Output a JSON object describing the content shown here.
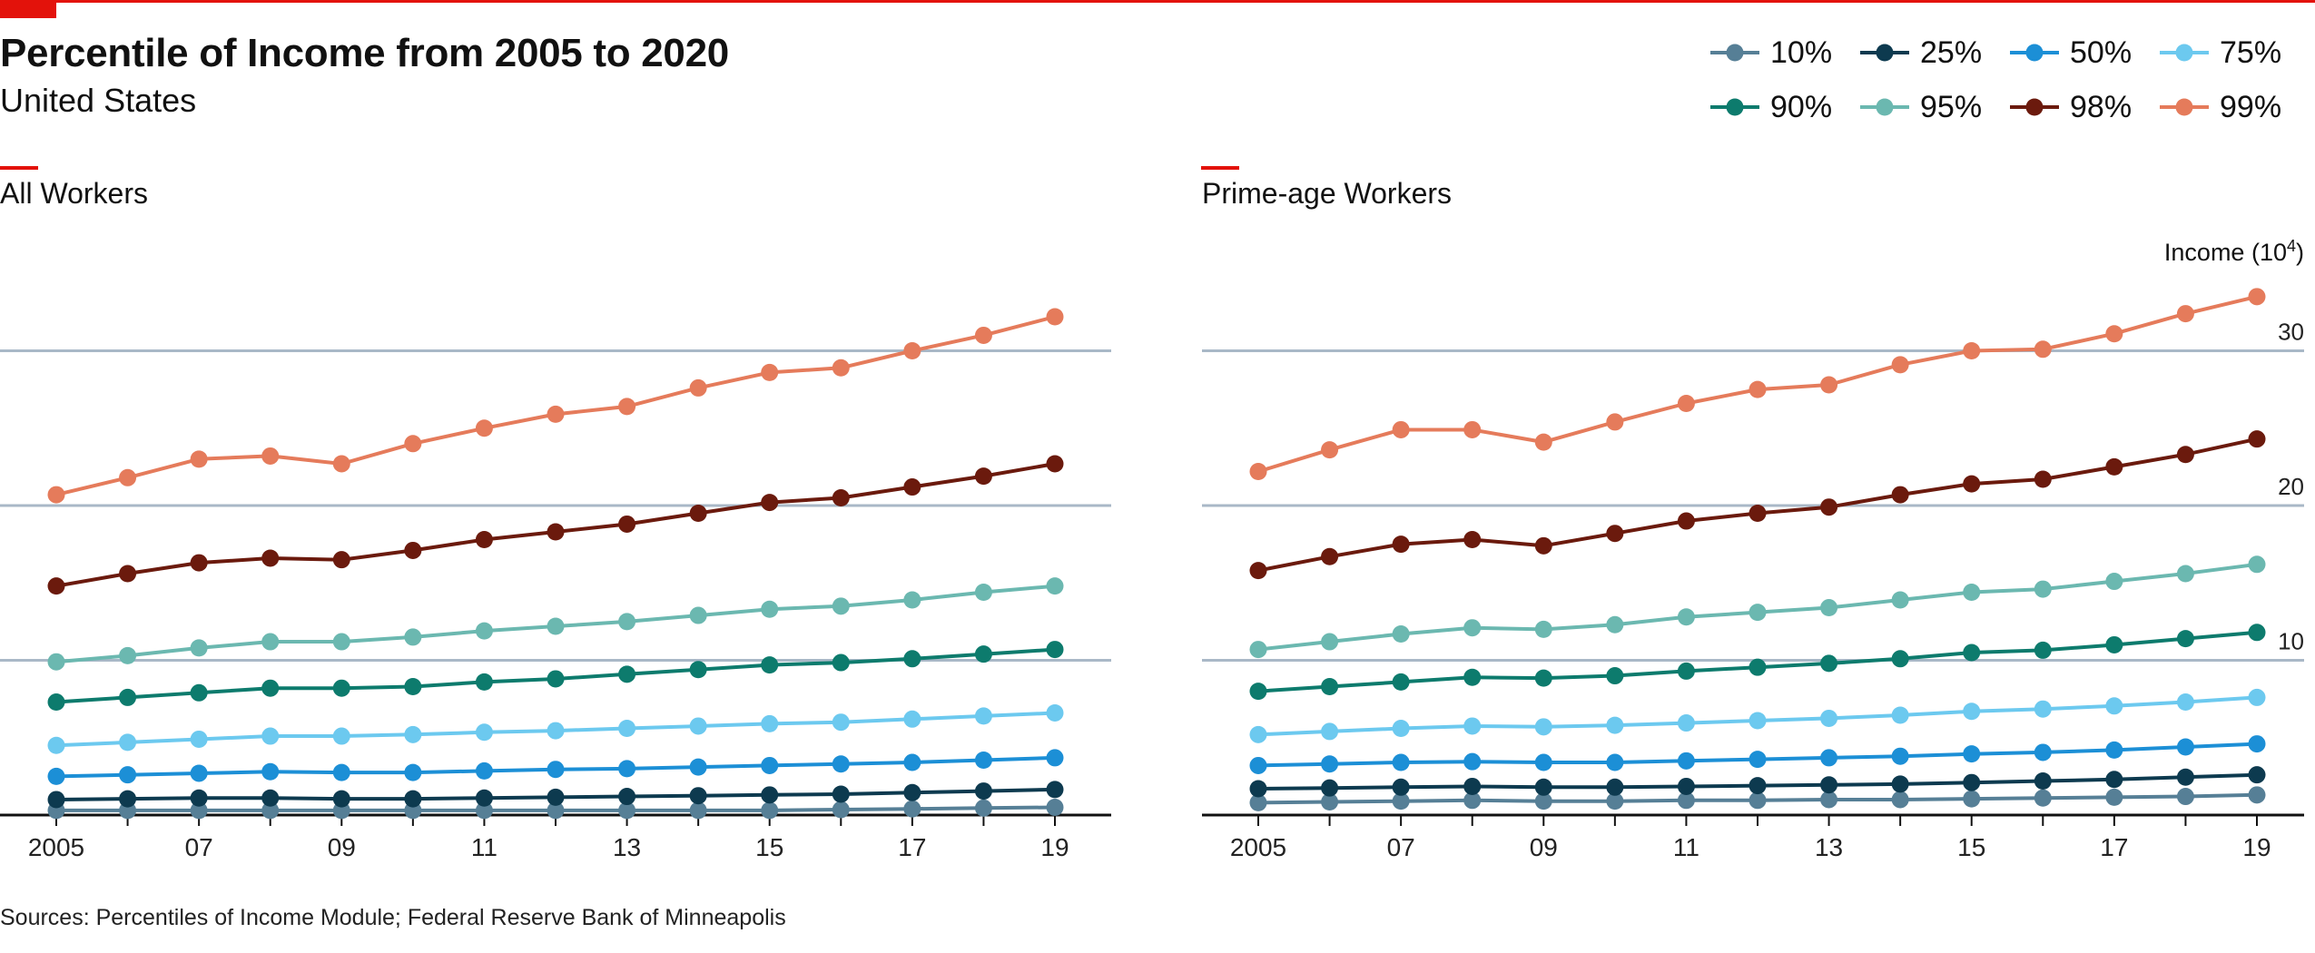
{
  "title": "Percentile of Income from 2005 to 2020",
  "subtitle": "United States",
  "source": "Sources: Percentiles of Income Module; Federal Reserve Bank of Minneapolis",
  "colors": {
    "accent": "#e3120b",
    "grid": "#a9b8c7",
    "axis": "#111111"
  },
  "chart_data": [
    {
      "type": "line",
      "panel_title": "All Workers",
      "x": [
        "2005",
        "2006",
        "2007",
        "2008",
        "2009",
        "2010",
        "2011",
        "2012",
        "2013",
        "2014",
        "2015",
        "2016",
        "2017",
        "2018",
        "2019"
      ],
      "x_tick_labels": [
        "2005",
        "07",
        "09",
        "11",
        "13",
        "15",
        "17",
        "19"
      ],
      "ylim": [
        0,
        34
      ],
      "yticks": [
        10,
        20,
        30
      ],
      "ytick_labels_shown": false,
      "ylabel": "",
      "grid": true,
      "legend": "top-right",
      "series": [
        {
          "name": "10%",
          "color": "#567f96",
          "values": [
            0.3,
            0.3,
            0.3,
            0.3,
            0.3,
            0.3,
            0.3,
            0.3,
            0.3,
            0.3,
            0.3,
            0.35,
            0.4,
            0.45,
            0.5
          ]
        },
        {
          "name": "25%",
          "color": "#0d3a4f",
          "values": [
            1.0,
            1.05,
            1.1,
            1.1,
            1.05,
            1.05,
            1.1,
            1.15,
            1.2,
            1.25,
            1.3,
            1.35,
            1.45,
            1.55,
            1.65
          ]
        },
        {
          "name": "50%",
          "color": "#1c8fd6",
          "values": [
            2.5,
            2.6,
            2.7,
            2.8,
            2.75,
            2.75,
            2.85,
            2.95,
            3.0,
            3.1,
            3.2,
            3.3,
            3.4,
            3.55,
            3.7
          ]
        },
        {
          "name": "75%",
          "color": "#6cc9ef",
          "values": [
            4.5,
            4.7,
            4.9,
            5.1,
            5.1,
            5.2,
            5.35,
            5.45,
            5.6,
            5.75,
            5.9,
            6.0,
            6.2,
            6.4,
            6.6
          ]
        },
        {
          "name": "90%",
          "color": "#0d7b6d",
          "values": [
            7.3,
            7.6,
            7.9,
            8.2,
            8.2,
            8.3,
            8.6,
            8.8,
            9.1,
            9.4,
            9.7,
            9.85,
            10.1,
            10.4,
            10.7
          ]
        },
        {
          "name": "95%",
          "color": "#6bb8b0",
          "values": [
            9.9,
            10.3,
            10.8,
            11.2,
            11.2,
            11.5,
            11.9,
            12.2,
            12.5,
            12.9,
            13.3,
            13.5,
            13.9,
            14.4,
            14.8
          ]
        },
        {
          "name": "98%",
          "color": "#6b1a0d",
          "values": [
            14.8,
            15.6,
            16.3,
            16.6,
            16.5,
            17.1,
            17.8,
            18.3,
            18.8,
            19.5,
            20.2,
            20.5,
            21.2,
            21.9,
            22.7
          ]
        },
        {
          "name": "99%",
          "color": "#e57b5b",
          "values": [
            20.7,
            21.8,
            23.0,
            23.2,
            22.7,
            24.0,
            25.0,
            25.9,
            26.4,
            27.6,
            28.6,
            28.9,
            30.0,
            31.0,
            32.2
          ]
        }
      ]
    },
    {
      "type": "line",
      "panel_title": "Prime-age Workers",
      "x": [
        "2005",
        "2006",
        "2007",
        "2008",
        "2009",
        "2010",
        "2011",
        "2012",
        "2013",
        "2014",
        "2015",
        "2016",
        "2017",
        "2018",
        "2019"
      ],
      "x_tick_labels": [
        "2005",
        "07",
        "09",
        "11",
        "13",
        "15",
        "17",
        "19"
      ],
      "ylim": [
        0,
        34
      ],
      "yticks": [
        10,
        20,
        30
      ],
      "ytick_labels": [
        "10",
        "20",
        "30"
      ],
      "ylabel": "Income (10",
      "ylabel_superscript": "4",
      "ylabel_suffix": ")",
      "grid": true,
      "legend": "top-right",
      "series": [
        {
          "name": "10%",
          "color": "#567f96",
          "values": [
            0.8,
            0.85,
            0.9,
            0.95,
            0.9,
            0.9,
            0.95,
            0.95,
            1.0,
            1.0,
            1.05,
            1.1,
            1.15,
            1.2,
            1.3
          ]
        },
        {
          "name": "25%",
          "color": "#0d3a4f",
          "values": [
            1.7,
            1.75,
            1.8,
            1.85,
            1.8,
            1.8,
            1.85,
            1.9,
            1.95,
            2.0,
            2.1,
            2.2,
            2.3,
            2.45,
            2.6
          ]
        },
        {
          "name": "50%",
          "color": "#1c8fd6",
          "values": [
            3.2,
            3.3,
            3.4,
            3.45,
            3.4,
            3.4,
            3.5,
            3.6,
            3.7,
            3.8,
            3.95,
            4.05,
            4.2,
            4.4,
            4.6
          ]
        },
        {
          "name": "75%",
          "color": "#6cc9ef",
          "values": [
            5.2,
            5.4,
            5.6,
            5.75,
            5.7,
            5.8,
            5.95,
            6.1,
            6.25,
            6.45,
            6.7,
            6.85,
            7.05,
            7.3,
            7.6
          ]
        },
        {
          "name": "90%",
          "color": "#0d7b6d",
          "values": [
            8.0,
            8.3,
            8.6,
            8.9,
            8.85,
            9.0,
            9.3,
            9.55,
            9.8,
            10.1,
            10.5,
            10.65,
            11.0,
            11.4,
            11.8
          ]
        },
        {
          "name": "95%",
          "color": "#6bb8b0",
          "values": [
            10.7,
            11.2,
            11.7,
            12.1,
            12.0,
            12.3,
            12.8,
            13.1,
            13.4,
            13.9,
            14.4,
            14.6,
            15.1,
            15.6,
            16.2
          ]
        },
        {
          "name": "98%",
          "color": "#6b1a0d",
          "values": [
            15.8,
            16.7,
            17.5,
            17.8,
            17.4,
            18.2,
            19.0,
            19.5,
            19.9,
            20.7,
            21.4,
            21.7,
            22.5,
            23.3,
            24.3
          ]
        },
        {
          "name": "99%",
          "color": "#e57b5b",
          "values": [
            22.2,
            23.6,
            24.9,
            24.9,
            24.1,
            25.4,
            26.6,
            27.5,
            27.8,
            29.1,
            30.0,
            30.1,
            31.1,
            32.4,
            33.5
          ]
        }
      ]
    }
  ]
}
